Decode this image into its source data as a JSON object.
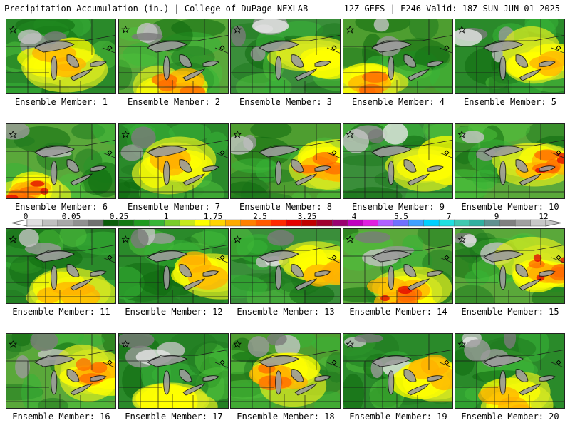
{
  "header": {
    "title_left": "Precipitation Accumulation (in.) | College of DuPage NEXLAB",
    "title_right": "12Z GEFS | F246 Valid: 18Z SUN JUN 01 2025"
  },
  "members": [
    {
      "label": "Ensemble Member: 1",
      "theme": "green",
      "gray": 0.5,
      "hot": 0.5,
      "hot_zone": "center"
    },
    {
      "label": "Ensemble Member: 2",
      "theme": "orange",
      "gray": 0.5,
      "hot": 0.8,
      "hot_zone": "south"
    },
    {
      "label": "Ensemble Member: 3",
      "theme": "gray",
      "gray": 0.8,
      "hot": 0.3,
      "hot_zone": "east"
    },
    {
      "label": "Ensemble Member: 4",
      "theme": "yellow",
      "gray": 0.4,
      "hot": 0.8,
      "hot_zone": "southwest"
    },
    {
      "label": "Ensemble Member: 5",
      "theme": "green",
      "gray": 0.6,
      "hot": 0.6,
      "hot_zone": "east"
    },
    {
      "label": "Ensemble Member: 6",
      "theme": "orange",
      "gray": 0.4,
      "hot": 0.9,
      "hot_zone": "southwest"
    },
    {
      "label": "Ensemble Member: 7",
      "theme": "green",
      "gray": 0.5,
      "hot": 0.6,
      "hot_zone": "center"
    },
    {
      "label": "Ensemble Member: 8",
      "theme": "yellow",
      "gray": 0.4,
      "hot": 0.8,
      "hot_zone": "east"
    },
    {
      "label": "Ensemble Member: 9",
      "theme": "gray",
      "gray": 0.7,
      "hot": 0.4,
      "hot_zone": "east"
    },
    {
      "label": "Ensemble Member: 10",
      "theme": "orange",
      "gray": 0.3,
      "hot": 0.9,
      "hot_zone": "east"
    },
    {
      "label": "Ensemble Member: 11",
      "theme": "green",
      "gray": 0.3,
      "hot": 0.5,
      "hot_zone": "south"
    },
    {
      "label": "Ensemble Member: 12",
      "theme": "green",
      "gray": 0.5,
      "hot": 0.5,
      "hot_zone": "east"
    },
    {
      "label": "Ensemble Member: 13",
      "theme": "gray",
      "gray": 0.7,
      "hot": 0.5,
      "hot_zone": "east"
    },
    {
      "label": "Ensemble Member: 14",
      "theme": "orange",
      "gray": 0.5,
      "hot": 0.9,
      "hot_zone": "south"
    },
    {
      "label": "Ensemble Member: 15",
      "theme": "orange",
      "gray": 0.6,
      "hot": 0.9,
      "hot_zone": "east"
    },
    {
      "label": "Ensemble Member: 16",
      "theme": "orange",
      "gray": 0.5,
      "hot": 0.8,
      "hot_zone": "east"
    },
    {
      "label": "Ensemble Member: 17",
      "theme": "green",
      "gray": 0.7,
      "hot": 0.4,
      "hot_zone": "south"
    },
    {
      "label": "Ensemble Member: 18",
      "theme": "yellow",
      "gray": 0.6,
      "hot": 0.7,
      "hot_zone": "center"
    },
    {
      "label": "Ensemble Member: 19",
      "theme": "green",
      "gray": 0.7,
      "hot": 0.5,
      "hot_zone": "east"
    },
    {
      "label": "Ensemble Member: 20",
      "theme": "green",
      "gray": 0.8,
      "hot": 0.5,
      "hot_zone": "south"
    }
  ],
  "colorbar": {
    "labels": [
      "0",
      "0.05",
      "0.25",
      "1",
      "1.75",
      "2.5",
      "3.25",
      "4",
      "5.5",
      "7",
      "9",
      "12"
    ],
    "colors": [
      "#e0e0e0",
      "#c0c0c0",
      "#a8a8a8",
      "#909090",
      "#707070",
      "#0a5c0a",
      "#127812",
      "#1f9a1f",
      "#37b537",
      "#79cc2a",
      "#c6e81c",
      "#ffff00",
      "#ffd400",
      "#ffaa00",
      "#ff8000",
      "#ff5a00",
      "#ff2a00",
      "#e60000",
      "#c00000",
      "#a00030",
      "#9a0070",
      "#c000c0",
      "#e020e0",
      "#b060ff",
      "#7070ff",
      "#40a0ff",
      "#00d0ff",
      "#20e0e0",
      "#40c8b0",
      "#30b0a0",
      "#609090",
      "#808080",
      "#a0a0a0",
      "#c8c8c8"
    ]
  }
}
